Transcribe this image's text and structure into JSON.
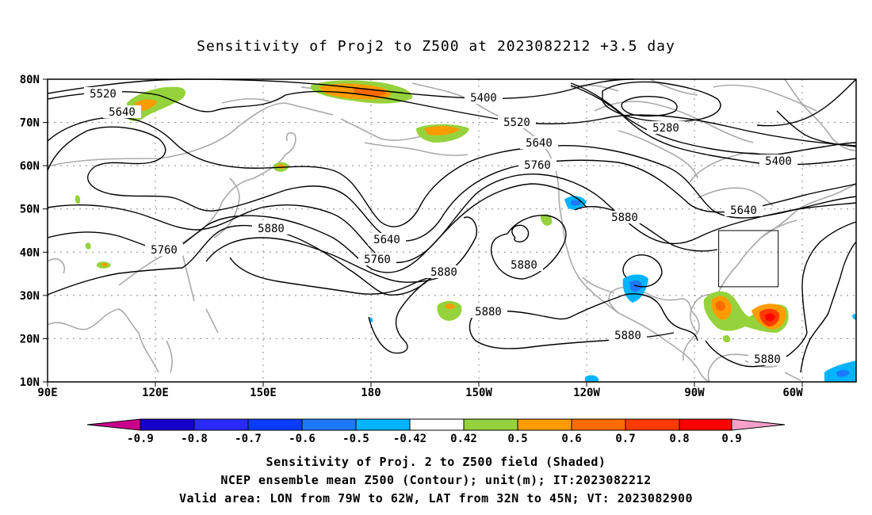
{
  "title": "Sensitivity of Proj2 to Z500 at 2023082212 +3.5 day",
  "lat_labels": [
    "80N",
    "70N",
    "60N",
    "50N",
    "40N",
    "30N",
    "20N",
    "10N"
  ],
  "lon_labels": [
    "90E",
    "120E",
    "150E",
    "180",
    "150W",
    "120W",
    "90W",
    "60W"
  ],
  "contour_labels": [
    "5520",
    "5640",
    "5400",
    "5520",
    "5280",
    "5640",
    "5760",
    "5400",
    "5880",
    "5640",
    "5880",
    "5640",
    "5760",
    "5760",
    "5880",
    "5880",
    "5880",
    "5880",
    "5880"
  ],
  "colorbar": {
    "labels": [
      "-0.9",
      "-0.8",
      "-0.7",
      "-0.6",
      "-0.5",
      "-0.42",
      "0.42",
      "0.5",
      "0.6",
      "0.7",
      "0.8",
      "0.9"
    ],
    "colors": [
      "#1400c8",
      "#2a2aff",
      "#0a3cff",
      "#1e78ff",
      "#00b4ff",
      "#ffffff",
      "#96d23c",
      "#ff9c00",
      "#ff6a00",
      "#ff3a00",
      "#ff0000"
    ],
    "low_extend_color": "#c8008c",
    "high_extend_color": "#f5a0c8"
  },
  "footer": {
    "line1": "Sensitivity of Proj. 2 to Z500 field (Shaded)",
    "line2": "NCEP ensemble mean Z500 (Contour); unit(m); IT:2023082212",
    "line3": "Valid area: LON from 79W to 62W, LAT from 32N to 45N; VT: 2023082900"
  },
  "valid_area": {
    "lon_west": "79W",
    "lon_east": "62W",
    "lat_south": "32N",
    "lat_north": "45N"
  }
}
